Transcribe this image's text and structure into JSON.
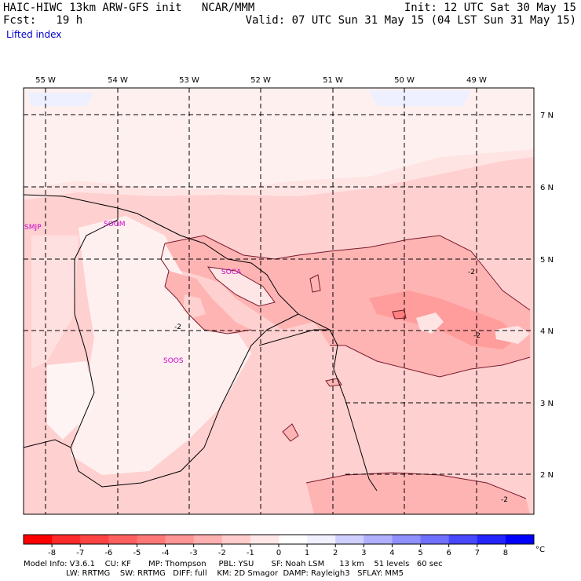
{
  "header": {
    "line1_left": "HAIC-HIWC 13km ARW-GFS init   NCAR/MMM",
    "line1_right": "Init: 12 UTC Sat 30 May 15",
    "line2_left": "Fcst:   19 h",
    "line2_right": "Valid: 07 UTC Sun 31 May 15 (04 LST Sun 31 May 15)",
    "field_name": "Lifted index"
  },
  "map": {
    "lon_labels": [
      "55 W",
      "54 W",
      "53 W",
      "52 W",
      "51 W",
      "50 W",
      "49 W"
    ],
    "lat_labels": [
      "7 N",
      "6 N",
      "5 N",
      "4 N",
      "3 N",
      "2 N"
    ],
    "stations": [
      "SMJP",
      "SOGM",
      "SOCA",
      "SOOS"
    ],
    "contour_labels": [
      "-2",
      "-2",
      "-2",
      "-2"
    ]
  },
  "colorbar": {
    "ticks": [
      "-8",
      "-7",
      "-6",
      "-5",
      "-4",
      "-3",
      "-2",
      "-1",
      "0",
      "1",
      "2",
      "3",
      "4",
      "5",
      "6",
      "7",
      "8"
    ],
    "unit": "°C",
    "colors": [
      "#ff0000",
      "#ff2a2a",
      "#ff4444",
      "#ff5f5f",
      "#ff7878",
      "#ff9595",
      "#ffb0b0",
      "#ffcccc",
      "#ffe7e7",
      "#f0f0ff",
      "#d0d0ff",
      "#b0b0ff",
      "#9090ff",
      "#7070ff",
      "#4848ff",
      "#2424ff",
      "#0000ff"
    ]
  },
  "footer": {
    "line1": "Model Info: V3.6.1    CU: KF       MP: Thompson     PBL: YSU       SF: Noah LSM      13 km    51 levels   60 sec",
    "line2": "                 LW: RRTMG    SW: RRTMG   DIFF: full    KM: 2D Smagor  DAMP: Rayleigh3   SFLAY: MM5"
  }
}
